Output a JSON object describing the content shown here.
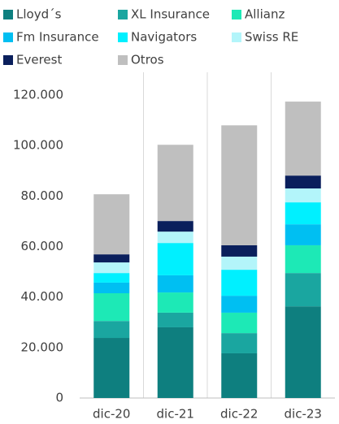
{
  "chart_data": {
    "type": "stacked_bar",
    "categories": [
      "dic-20",
      "dic-21",
      "dic-22",
      "dic-23"
    ],
    "series": [
      {
        "name": "Lloyd´s",
        "color": "#0e7f7f",
        "values": [
          23800,
          28000,
          17700,
          36300
        ]
      },
      {
        "name": "XL Insurance",
        "color": "#1aa6a0",
        "values": [
          6700,
          5800,
          8000,
          13200
        ]
      },
      {
        "name": "Allianz",
        "color": "#1de9b6",
        "values": [
          11000,
          8000,
          8100,
          11000
        ]
      },
      {
        "name": "Fm Insurance",
        "color": "#00bff2",
        "values": [
          4200,
          6800,
          6700,
          8300
        ]
      },
      {
        "name": "Navigators",
        "color": "#00f0ff",
        "values": [
          3800,
          12800,
          10300,
          8700
        ]
      },
      {
        "name": "Swiss RE",
        "color": "#b3f5fa",
        "values": [
          4200,
          4500,
          5200,
          5500
        ]
      },
      {
        "name": "Everest",
        "color": "#0a1f5c",
        "values": [
          3200,
          4200,
          4500,
          5100
        ]
      },
      {
        "name": "Otros",
        "color": "#bfbfbf",
        "values": [
          23800,
          30200,
          47500,
          29300
        ]
      }
    ],
    "ylim": [
      0,
      120000
    ],
    "yticks": [
      0,
      {
        "value": 20000,
        "label": "20.000"
      },
      {
        "value": 40000,
        "label": "40.000"
      },
      {
        "value": 60000,
        "label": "60.000"
      },
      {
        "value": 80000,
        "label": "80.000"
      },
      {
        "value": 100000,
        "label": "100.000"
      },
      {
        "value": 120000,
        "label": "120.000"
      }
    ],
    "legend": "top"
  }
}
